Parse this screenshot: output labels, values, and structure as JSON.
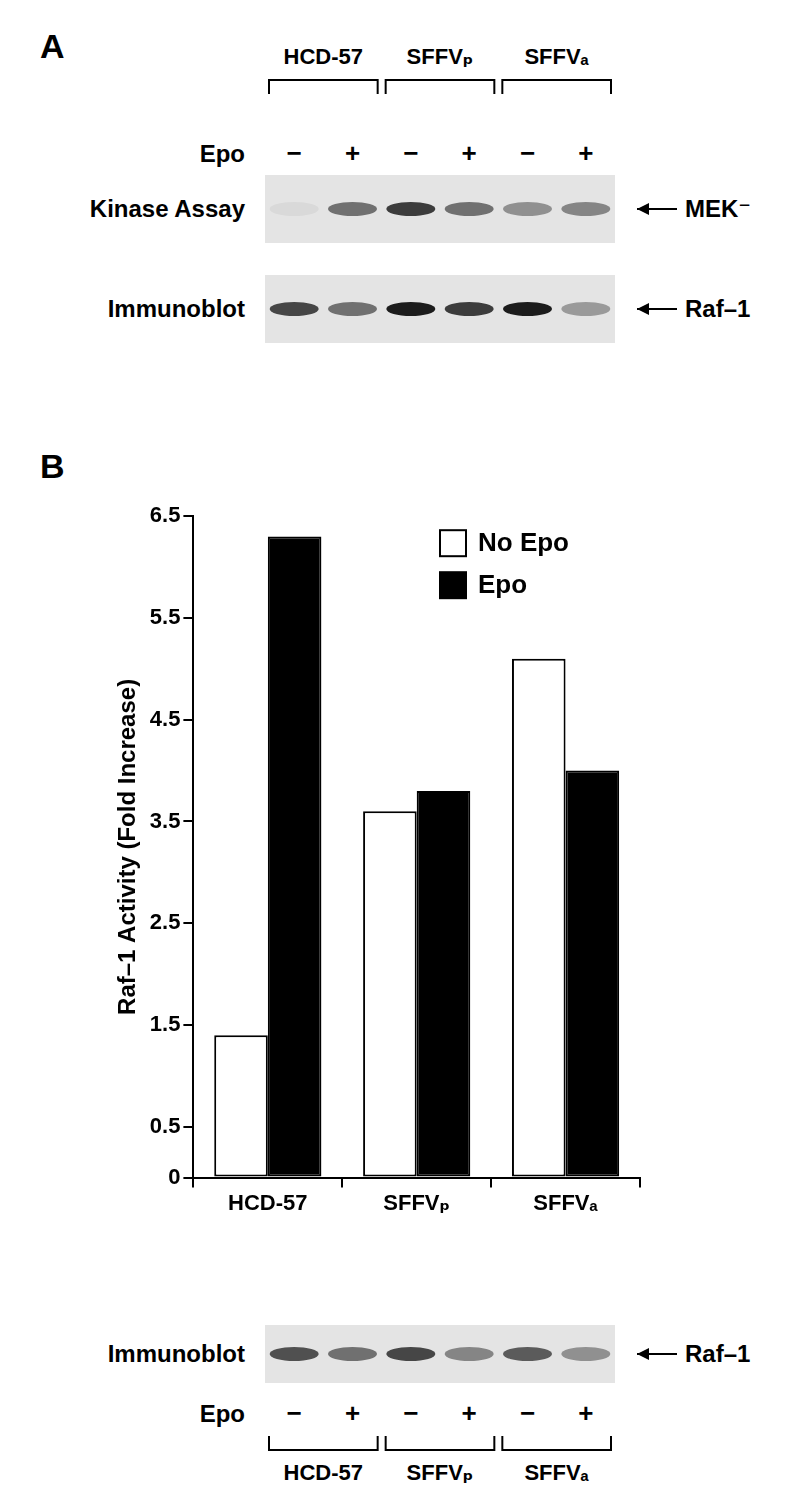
{
  "panel_a": {
    "label": "A",
    "groups": [
      "HCD-57",
      "SFFVₚ",
      "SFFVₐ"
    ],
    "epo_label": "Epo",
    "treatments": [
      "−",
      "+"
    ],
    "blots": [
      {
        "label": "Kinase Assay",
        "band": "MEK⁻",
        "intensities": [
          0.05,
          0.55,
          0.8,
          0.55,
          0.4,
          0.45
        ]
      },
      {
        "label": "Immunoblot",
        "band": "Raf–1",
        "intensities": [
          0.75,
          0.55,
          0.95,
          0.8,
          0.95,
          0.35
        ]
      }
    ]
  },
  "panel_b": {
    "label": "B",
    "blot": {
      "label": "Immunoblot",
      "band": "Raf–1",
      "epo_label": "Epo",
      "treatments": [
        "−",
        "+"
      ],
      "groups": [
        "HCD-57",
        "SFFVₚ",
        "SFFVₐ"
      ],
      "intensities": [
        0.7,
        0.55,
        0.75,
        0.45,
        0.65,
        0.4
      ]
    }
  },
  "chart_data": {
    "type": "bar",
    "y_label": "Raf–1 Activity (Fold Increase)",
    "categories": [
      "HCD-57",
      "SFFVₚ",
      "SFFVₐ"
    ],
    "series": [
      {
        "name": "No Epo",
        "color": "#ffffff",
        "values": [
          1.4,
          3.6,
          5.1
        ]
      },
      {
        "name": "Epo",
        "color": "#000000",
        "values": [
          6.3,
          3.8,
          4.0
        ]
      }
    ],
    "ylim": [
      0,
      6.5
    ],
    "yticks": [
      0,
      0.5,
      1.5,
      2.5,
      3.5,
      4.5,
      5.5,
      6.5
    ],
    "grid": false,
    "legend": "upper right"
  }
}
